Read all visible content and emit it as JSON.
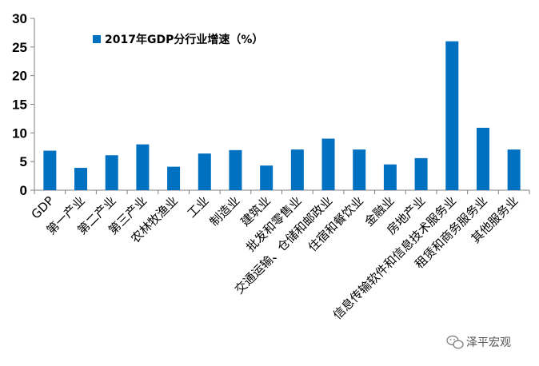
{
  "chart_data": {
    "type": "bar",
    "title": "",
    "xlabel": "",
    "ylabel": "",
    "ylim": [
      0,
      30
    ],
    "yticks": [
      0,
      5,
      10,
      15,
      20,
      25,
      30
    ],
    "grid": false,
    "legend": {
      "position": "top-left",
      "entries": [
        "2017年GDP分行业增速（%）"
      ]
    },
    "categories": [
      "GDP",
      "第一产业",
      "第二产业",
      "第三产业",
      "农林牧渔业",
      "工业",
      "制造业",
      "建筑业",
      "批发和零售业",
      "交通运输、仓储和邮政业",
      "住宿和餐饮业",
      "金融业",
      "房地产业",
      "信息传输软件和信息技术服务业",
      "租赁和商务服务业",
      "其他服务业"
    ],
    "series": [
      {
        "name": "2017年GDP分行业增速（%）",
        "color": "#0070C0",
        "values": [
          6.9,
          3.9,
          6.1,
          8.0,
          4.1,
          6.4,
          7.0,
          4.3,
          7.1,
          9.0,
          7.1,
          4.5,
          5.6,
          26.0,
          10.9,
          7.1
        ]
      }
    ]
  },
  "watermark": {
    "text": "泽平宏观",
    "icon": "wechat-icon"
  },
  "colors": {
    "bar": "#0070C0",
    "axis": "#7f7f7f",
    "text": "#000000"
  }
}
